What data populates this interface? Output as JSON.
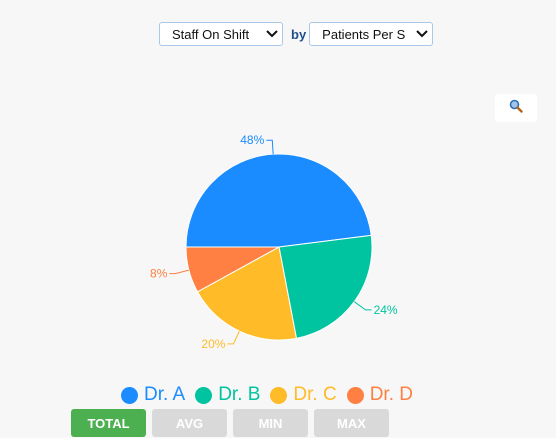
{
  "controls": {
    "metric_select": "Staff On Shift",
    "by_label": "by",
    "group_select": "Patients Per S"
  },
  "toolbar": {
    "zoom_icon": "magnifier-icon"
  },
  "colors": {
    "Dr. A": "#1a8cff",
    "Dr. B": "#00c49f",
    "Dr. C": "#ffbb28",
    "Dr. D": "#ff8042"
  },
  "chart_data": {
    "type": "pie",
    "categories": [
      "Dr. A",
      "Dr. B",
      "Dr. C",
      "Dr. D"
    ],
    "values": [
      48,
      24,
      20,
      8
    ],
    "labels": [
      "48%",
      "24%",
      "20%",
      "8%"
    ],
    "legend": [
      "Dr. A",
      "Dr. B",
      "Dr. C",
      "Dr. D"
    ],
    "legend_position": "bottom"
  },
  "stat_tabs": [
    {
      "label": "TOTAL",
      "active": true
    },
    {
      "label": "AVG",
      "active": false
    },
    {
      "label": "MIN",
      "active": false
    },
    {
      "label": "MAX",
      "active": false
    }
  ]
}
